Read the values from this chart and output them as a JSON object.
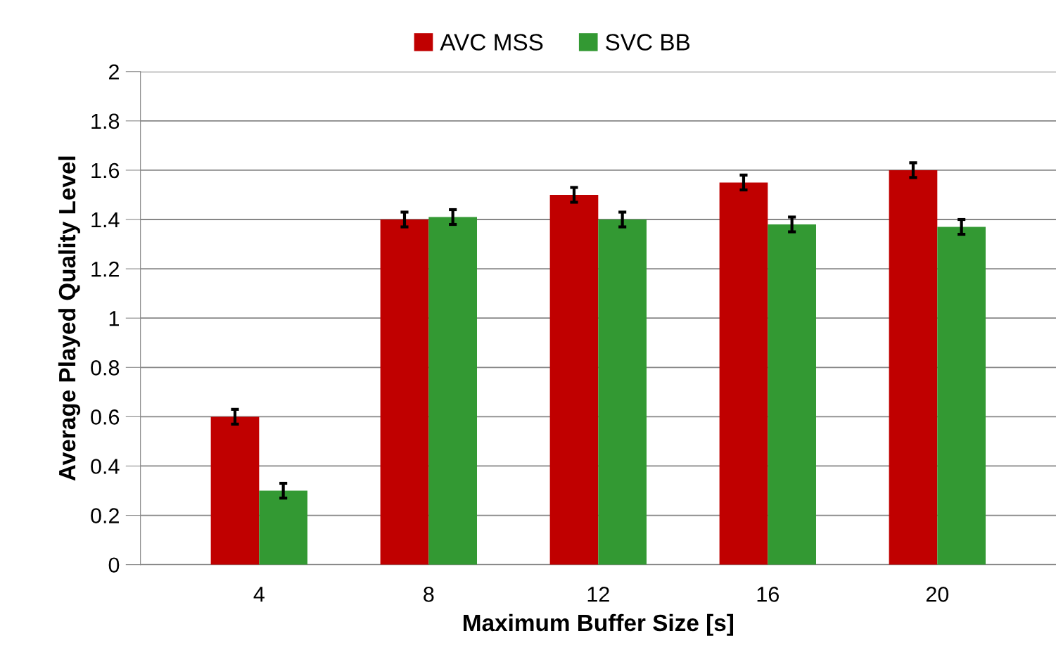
{
  "chart_data": {
    "type": "bar",
    "xlabel": "Maximum Buffer Size [s]",
    "ylabel": "Average Played Quality Level",
    "categories": [
      "4",
      "8",
      "12",
      "16",
      "20"
    ],
    "series": [
      {
        "name": "AVC MSS",
        "color": "#c00000",
        "values": [
          0.6,
          1.4,
          1.5,
          1.55,
          1.6
        ],
        "errors": [
          0.03,
          0.03,
          0.03,
          0.03,
          0.03
        ]
      },
      {
        "name": "SVC BB",
        "color": "#339933",
        "values": [
          0.3,
          1.41,
          1.4,
          1.38,
          1.37
        ],
        "errors": [
          0.03,
          0.03,
          0.03,
          0.03,
          0.03
        ]
      }
    ],
    "ylim": [
      0,
      2
    ],
    "yticks": [
      0,
      0.2,
      0.4,
      0.6,
      0.8,
      1,
      1.2,
      1.4,
      1.6,
      1.8,
      2
    ],
    "grid": "y",
    "legend": "top"
  }
}
